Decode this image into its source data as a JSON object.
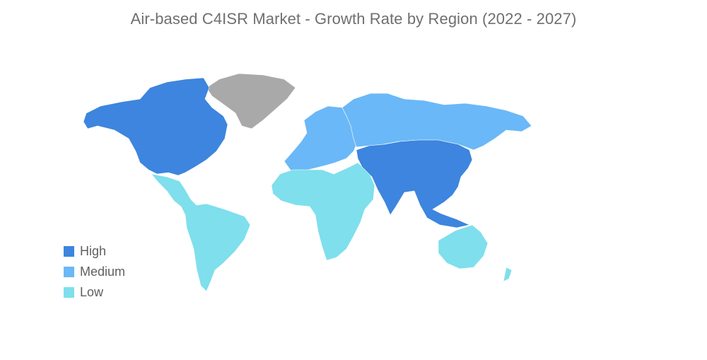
{
  "title": "Air-based C4ISR Market - Growth Rate by Region (2022 - 2027)",
  "colors": {
    "high": "#3d85de",
    "medium": "#6ab8f7",
    "low": "#7fdfec",
    "no_data": "#a9a9a9"
  },
  "legend": [
    {
      "label": "High",
      "level": "high"
    },
    {
      "label": "Medium",
      "level": "medium"
    },
    {
      "label": "Low",
      "level": "low"
    }
  ],
  "regions": {
    "north_america": "high",
    "greenland": "no_data",
    "central_south_america": "low",
    "europe": "medium",
    "russia_central_asia": "medium",
    "middle_east_africa": "low",
    "asia_pacific": "high",
    "oceania": "low"
  }
}
